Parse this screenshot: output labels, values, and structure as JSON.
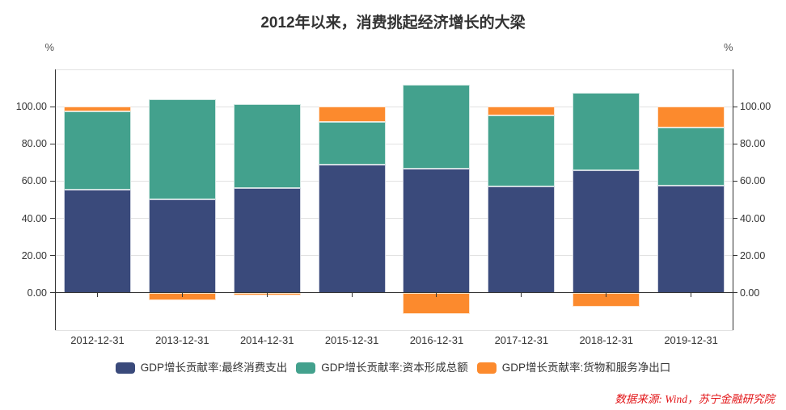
{
  "axes": {
    "unit_left": "%",
    "unit_right": "%",
    "y_ticks": [
      {
        "value": 0,
        "label": "0.00"
      },
      {
        "value": 20,
        "label": "20.00"
      },
      {
        "value": 40,
        "label": "40.00"
      },
      {
        "value": 60,
        "label": "60.00"
      },
      {
        "value": 80,
        "label": "80.00"
      },
      {
        "value": 100,
        "label": "100.00"
      }
    ]
  },
  "chart_data": {
    "type": "bar",
    "stacked": true,
    "title": "2012年以来，消费挑起经济增长的大梁",
    "categories": [
      "2012-12-31",
      "2013-12-31",
      "2014-12-31",
      "2015-12-31",
      "2016-12-31",
      "2017-12-31",
      "2018-12-31",
      "2019-12-31"
    ],
    "series": [
      {
        "name": "GDP增长贡献率:最终消费支出",
        "color": "#3A4A7B",
        "values": [
          55.4,
          50.2,
          56.4,
          69.0,
          66.5,
          57.3,
          65.9,
          57.5
        ]
      },
      {
        "name": "GDP增长贡献率:资本形成总额",
        "color": "#43A18D",
        "values": [
          42.0,
          53.6,
          45.0,
          22.8,
          45.2,
          38.0,
          41.5,
          31.5
        ]
      },
      {
        "name": "GDP增长贡献率:货物和服务净出口",
        "color": "#FC8A2D",
        "values": [
          2.6,
          -3.8,
          -1.4,
          8.2,
          -11.4,
          4.7,
          -7.3,
          11.0
        ]
      }
    ],
    "ylabel": "%",
    "ylim": [
      -20,
      120
    ],
    "y_tick_step": 20,
    "grid": true,
    "legend_position": "bottom"
  },
  "footer": {
    "source": "数据来源: Wind，苏宁金融研究院"
  },
  "colors": {
    "axis_line": "#333333",
    "grid_line": "#E2E2E2",
    "tick_label": "#333333",
    "source_text": "#E21417"
  }
}
